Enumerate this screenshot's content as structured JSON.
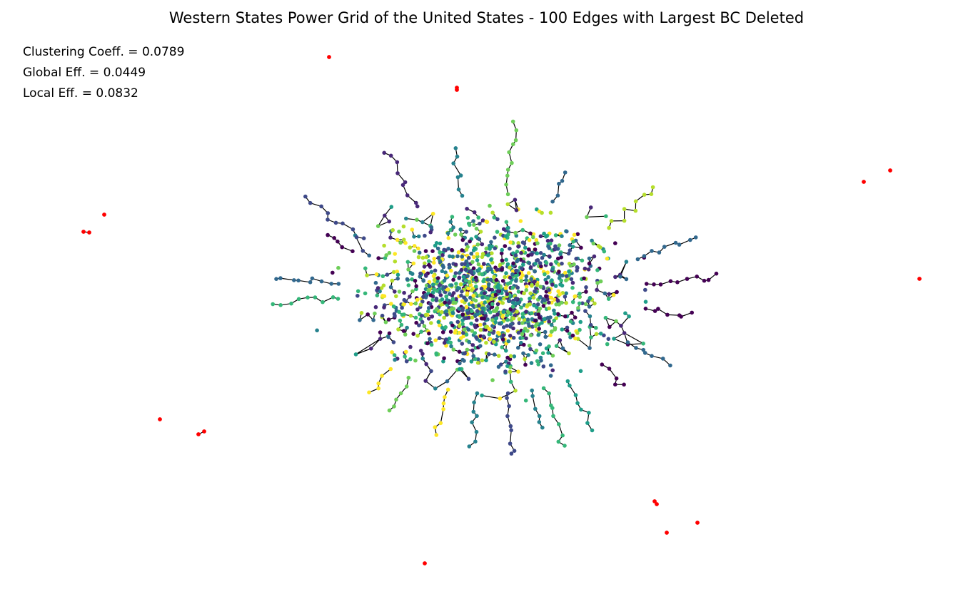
{
  "title": "Western States Power Grid of the United States - 100 Edges with Largest BC Deleted",
  "metrics": [
    {
      "label": "Clustering Coeff.",
      "value": "0.0789"
    },
    {
      "label": "Global Eff.",
      "value": "0.0449"
    },
    {
      "label": "Local Eff.",
      "value": "0.0832"
    }
  ],
  "network": {
    "layout": "force-directed",
    "main_component": "single dense cluster of nodes colored by community",
    "node_palette": [
      "#440154",
      "#482878",
      "#3e4989",
      "#31688e",
      "#26828e",
      "#1f9e89",
      "#35b779",
      "#6ece58",
      "#b5de2b",
      "#fde725"
    ],
    "edge_color": "#000000",
    "isolated_node_color": "#ff0000",
    "isolated_groups": 14
  }
}
